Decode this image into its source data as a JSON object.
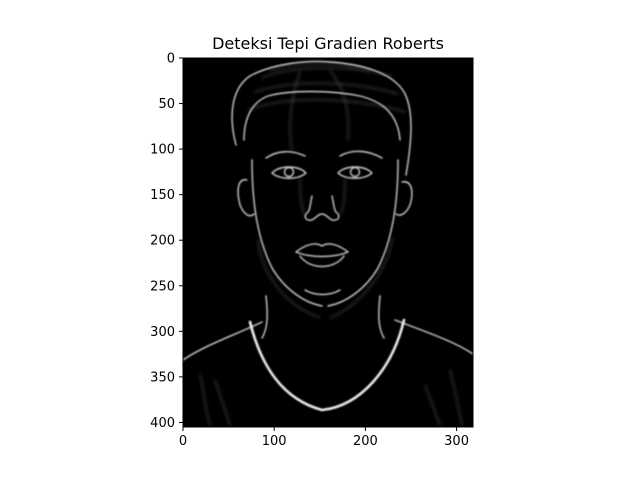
{
  "chart_data": {
    "type": "image",
    "title": "Deteksi Tepi Gradien Roberts",
    "xlabel": "",
    "ylabel": "",
    "xlim": [
      0,
      318
    ],
    "ylim": [
      405,
      0
    ],
    "xticks": [
      0,
      100,
      200,
      300
    ],
    "yticks": [
      0,
      50,
      100,
      150,
      200,
      250,
      300,
      350,
      400
    ],
    "xtick_labels": [
      "0",
      "100",
      "200",
      "300"
    ],
    "ytick_labels": [
      "0",
      "50",
      "100",
      "150",
      "200",
      "250",
      "300",
      "350",
      "400"
    ],
    "grid": false,
    "colormap": "gray",
    "image_content": "edge-detected-face"
  },
  "colors": {
    "background": "#000000",
    "edge": "#d8d8d8",
    "edge_dim": "#6a6a6a",
    "axes": "#000000",
    "figure": "#ffffff"
  }
}
